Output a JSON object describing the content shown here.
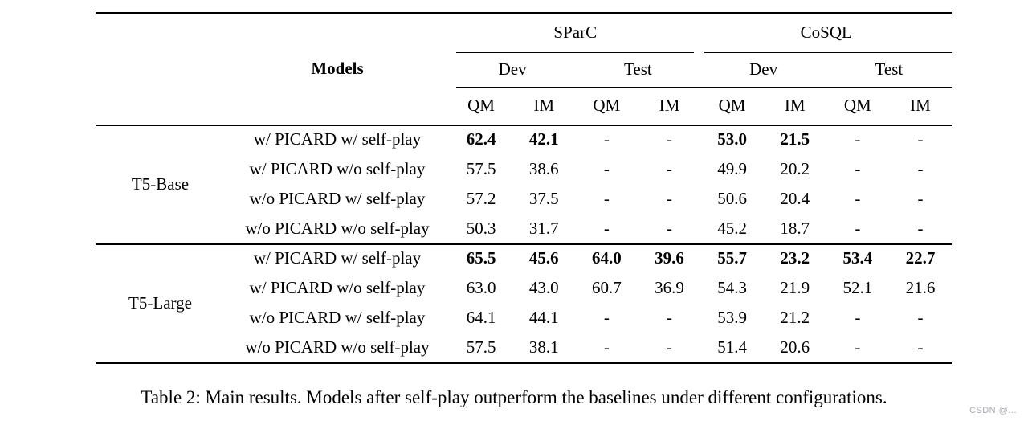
{
  "page": {
    "caption": "Table 2: Main results. Models after self-play outperform the baselines under different configurations.",
    "watermark": "CSDN @..."
  },
  "colors": {
    "text": "#000000",
    "background": "#ffffff",
    "rule": "#000000",
    "watermark": "#a9a9b4"
  },
  "table": {
    "models_header": "Models",
    "dataset_groups": [
      {
        "label": "SParC"
      },
      {
        "label": "CoSQL"
      }
    ],
    "split_labels": [
      "Dev",
      "Test",
      "Dev",
      "Test"
    ],
    "metric_labels": [
      "QM",
      "IM",
      "QM",
      "IM",
      "QM",
      "IM",
      "QM",
      "IM"
    ],
    "row_groups": [
      {
        "name": "T5-Base",
        "rows": [
          {
            "config": "w/ PICARD w/ self-play",
            "values": [
              "62.4",
              "42.1",
              "-",
              "-",
              "53.0",
              "21.5",
              "-",
              "-"
            ],
            "bold": [
              true,
              true,
              false,
              false,
              true,
              true,
              false,
              false
            ]
          },
          {
            "config": "w/ PICARD w/o self-play",
            "values": [
              "57.5",
              "38.6",
              "-",
              "-",
              "49.9",
              "20.2",
              "-",
              "-"
            ],
            "bold": [
              false,
              false,
              false,
              false,
              false,
              false,
              false,
              false
            ]
          },
          {
            "config": "w/o PICARD w/ self-play",
            "values": [
              "57.2",
              "37.5",
              "-",
              "-",
              "50.6",
              "20.4",
              "-",
              "-"
            ],
            "bold": [
              false,
              false,
              false,
              false,
              false,
              false,
              false,
              false
            ]
          },
          {
            "config": "w/o PICARD w/o self-play",
            "values": [
              "50.3",
              "31.7",
              "-",
              "-",
              "45.2",
              "18.7",
              "-",
              "-"
            ],
            "bold": [
              false,
              false,
              false,
              false,
              false,
              false,
              false,
              false
            ]
          }
        ]
      },
      {
        "name": "T5-Large",
        "rows": [
          {
            "config": "w/ PICARD w/ self-play",
            "values": [
              "65.5",
              "45.6",
              "64.0",
              "39.6",
              "55.7",
              "23.2",
              "53.4",
              "22.7"
            ],
            "bold": [
              true,
              true,
              true,
              true,
              true,
              true,
              true,
              true
            ]
          },
          {
            "config": "w/ PICARD w/o self-play",
            "values": [
              "63.0",
              "43.0",
              "60.7",
              "36.9",
              "54.3",
              "21.9",
              "52.1",
              "21.6"
            ],
            "bold": [
              false,
              false,
              false,
              false,
              false,
              false,
              false,
              false
            ]
          },
          {
            "config": "w/o PICARD w/ self-play",
            "values": [
              "64.1",
              "44.1",
              "-",
              "-",
              "53.9",
              "21.2",
              "-",
              "-"
            ],
            "bold": [
              false,
              false,
              false,
              false,
              false,
              false,
              false,
              false
            ]
          },
          {
            "config": "w/o PICARD w/o self-play",
            "values": [
              "57.5",
              "38.1",
              "-",
              "-",
              "51.4",
              "20.6",
              "-",
              "-"
            ],
            "bold": [
              false,
              false,
              false,
              false,
              false,
              false,
              false,
              false
            ]
          }
        ]
      }
    ]
  }
}
